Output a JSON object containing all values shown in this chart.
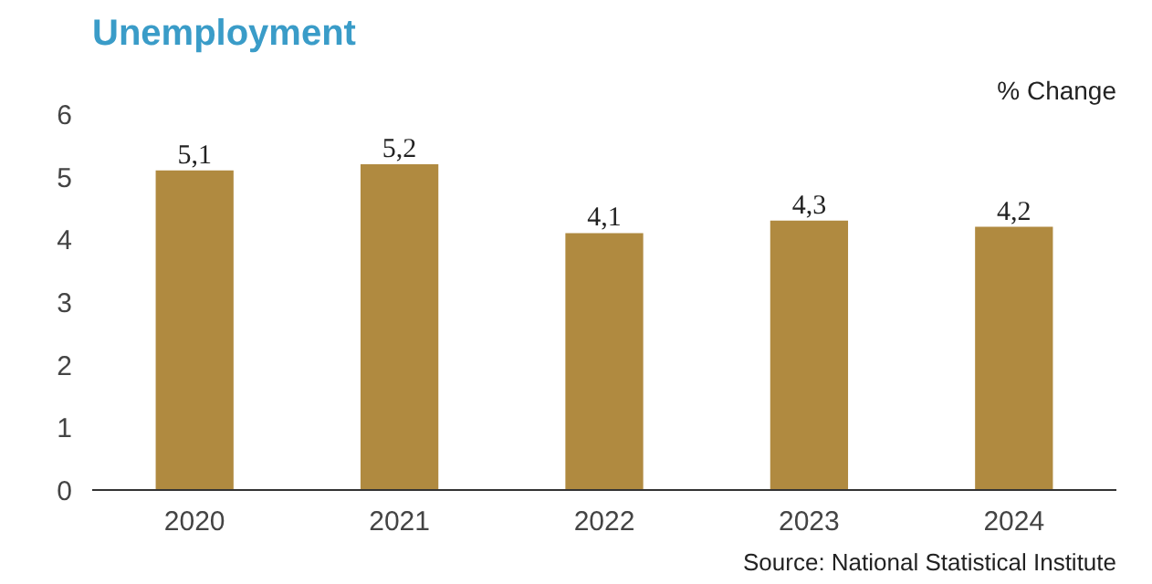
{
  "chart_data": {
    "type": "bar",
    "title": "Unemployment",
    "ylabel": "% Change",
    "categories": [
      "2020",
      "2021",
      "2022",
      "2023",
      "2024"
    ],
    "values": [
      5.1,
      5.2,
      4.1,
      4.3,
      4.2
    ],
    "value_labels": [
      "5,1",
      "5,2",
      "4,1",
      "4,3",
      "4,2"
    ],
    "color": "#b08a40",
    "ylim": [
      0,
      6
    ],
    "yticks": [
      0,
      1,
      2,
      3,
      4,
      5,
      6
    ],
    "grid": false,
    "annotations": [
      "Source: National Statistical Institute"
    ]
  }
}
